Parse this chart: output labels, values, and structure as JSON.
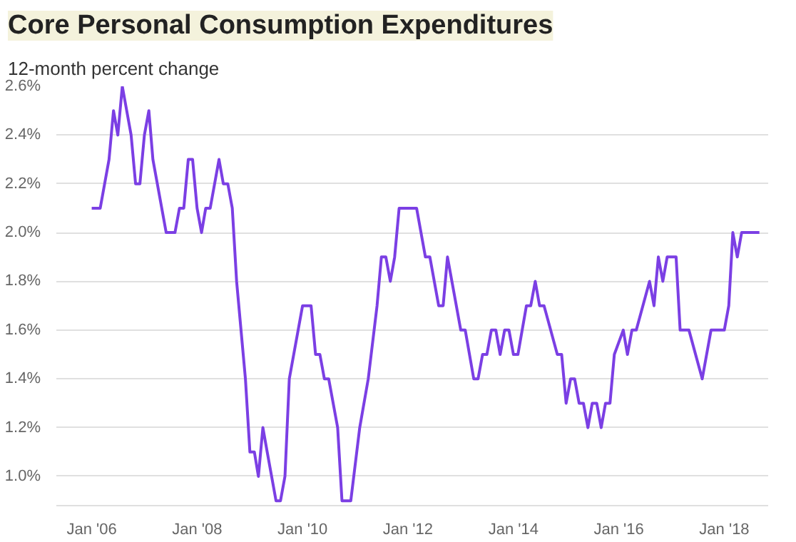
{
  "chart_data": {
    "type": "line",
    "title": "Core Personal Consumption Expenditures",
    "subtitle": "12-month percent change",
    "x": [
      "2006-01",
      "2006-03",
      "2006-05",
      "2006-06",
      "2006-07",
      "2006-08",
      "2006-10",
      "2006-11",
      "2006-12",
      "2007-01",
      "2007-02",
      "2007-03",
      "2007-06",
      "2007-08",
      "2007-09",
      "2007-10",
      "2007-11",
      "2007-12",
      "2008-01",
      "2008-02",
      "2008-03",
      "2008-04",
      "2008-06",
      "2008-07",
      "2008-08",
      "2008-09",
      "2008-10",
      "2008-12",
      "2009-01",
      "2009-02",
      "2009-03",
      "2009-04",
      "2009-05",
      "2009-07",
      "2009-08",
      "2009-09",
      "2009-10",
      "2010-01",
      "2010-03",
      "2010-04",
      "2010-05",
      "2010-06",
      "2010-07",
      "2010-09",
      "2010-10",
      "2010-12",
      "2011-02",
      "2011-04",
      "2011-06",
      "2011-07",
      "2011-08",
      "2011-09",
      "2011-10",
      "2011-11",
      "2011-12",
      "2012-03",
      "2012-05",
      "2012-06",
      "2012-08",
      "2012-09",
      "2012-10",
      "2013-01",
      "2013-02",
      "2013-04",
      "2013-05",
      "2013-06",
      "2013-07",
      "2013-08",
      "2013-09",
      "2013-10",
      "2013-11",
      "2013-12",
      "2014-01",
      "2014-02",
      "2014-04",
      "2014-05",
      "2014-06",
      "2014-07",
      "2014-08",
      "2014-11",
      "2014-12",
      "2015-01",
      "2015-02",
      "2015-03",
      "2015-04",
      "2015-05",
      "2015-06",
      "2015-07",
      "2015-08",
      "2015-09",
      "2015-10",
      "2015-11",
      "2015-12",
      "2016-02",
      "2016-03",
      "2016-04",
      "2016-05",
      "2016-08",
      "2016-09",
      "2016-10",
      "2016-11",
      "2016-12",
      "2017-02",
      "2017-03",
      "2017-05",
      "2017-08",
      "2017-10",
      "2018-01",
      "2018-02",
      "2018-03",
      "2018-04",
      "2018-05",
      "2018-09"
    ],
    "series": [
      {
        "color": "#7b3fe4",
        "values": [
          2.1,
          2.1,
          2.3,
          2.5,
          2.4,
          2.6,
          2.4,
          2.2,
          2.2,
          2.4,
          2.5,
          2.3,
          2.0,
          2.0,
          2.1,
          2.1,
          2.3,
          2.3,
          2.1,
          2.0,
          2.1,
          2.1,
          2.3,
          2.2,
          2.2,
          2.1,
          1.8,
          1.4,
          1.1,
          1.1,
          1.0,
          1.2,
          1.1,
          0.9,
          0.9,
          1.0,
          1.4,
          1.7,
          1.7,
          1.5,
          1.5,
          1.4,
          1.4,
          1.2,
          0.9,
          0.9,
          1.2,
          1.4,
          1.7,
          1.9,
          1.9,
          1.8,
          1.9,
          2.1,
          2.1,
          2.1,
          1.9,
          1.9,
          1.7,
          1.7,
          1.9,
          1.6,
          1.6,
          1.4,
          1.4,
          1.5,
          1.5,
          1.6,
          1.6,
          1.5,
          1.6,
          1.6,
          1.5,
          1.5,
          1.7,
          1.7,
          1.8,
          1.7,
          1.7,
          1.5,
          1.5,
          1.3,
          1.4,
          1.4,
          1.3,
          1.3,
          1.2,
          1.3,
          1.3,
          1.2,
          1.3,
          1.3,
          1.5,
          1.6,
          1.5,
          1.6,
          1.6,
          1.8,
          1.7,
          1.9,
          1.8,
          1.9,
          1.9,
          1.6,
          1.6,
          1.4,
          1.6,
          1.6,
          1.7,
          2.0,
          1.9,
          2.0,
          2.0
        ]
      }
    ],
    "xlim": [
      "2005-05",
      "2018-11"
    ],
    "xticks": [
      {
        "value": "2006-01",
        "label": "Jan '06"
      },
      {
        "value": "2008-01",
        "label": "Jan '08"
      },
      {
        "value": "2010-01",
        "label": "Jan '10"
      },
      {
        "value": "2012-01",
        "label": "Jan '12"
      },
      {
        "value": "2014-01",
        "label": "Jan '14"
      },
      {
        "value": "2016-01",
        "label": "Jan '16"
      },
      {
        "value": "2018-01",
        "label": "Jan '18"
      }
    ],
    "ylim": [
      0.88,
      2.6
    ],
    "yticks": [
      {
        "value": 1.0,
        "label": "1.0%"
      },
      {
        "value": 1.2,
        "label": "1.2%"
      },
      {
        "value": 1.4,
        "label": "1.4%"
      },
      {
        "value": 1.6,
        "label": "1.6%"
      },
      {
        "value": 1.8,
        "label": "1.8%"
      },
      {
        "value": 2.0,
        "label": "2.0%"
      },
      {
        "value": 2.2,
        "label": "2.2%"
      },
      {
        "value": 2.4,
        "label": "2.4%"
      },
      {
        "value": 2.6,
        "label": "2.6%"
      }
    ],
    "grid": "y",
    "marker": "none",
    "line_style": "solid"
  }
}
